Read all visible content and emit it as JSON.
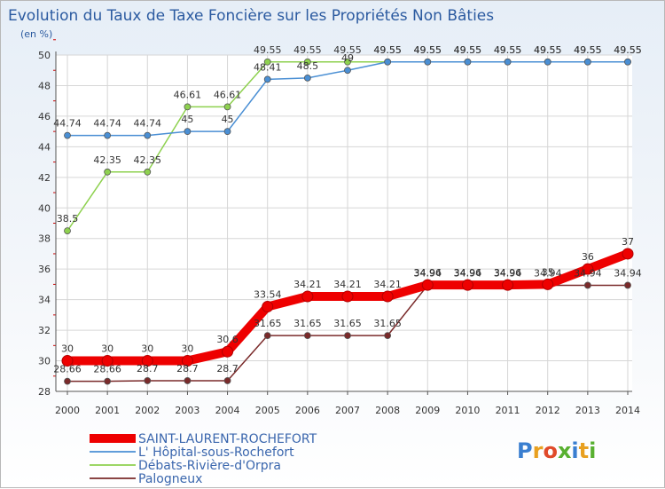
{
  "chart_data": {
    "type": "line",
    "title": "Evolution du Taux de Taxe Foncière sur les Propriétés Non Bâties",
    "unit_label": "(en %)",
    "ylim": [
      28,
      50
    ],
    "yticks": [
      28,
      30,
      32,
      34,
      36,
      38,
      40,
      42,
      44,
      46,
      48,
      50
    ],
    "x": [
      "2000",
      "2001",
      "2002",
      "2003",
      "2004",
      "2005",
      "2006",
      "2007",
      "2008",
      "2009",
      "2010",
      "2011",
      "2012",
      "2013",
      "2014"
    ],
    "series": [
      {
        "name": "Débats-Rivière-d'Orpra",
        "key": "debats-riviere",
        "color": "#8ed14f",
        "values": [
          38.5,
          42.35,
          42.35,
          46.61,
          46.61,
          49.55,
          49.55,
          49.55,
          49.55,
          49.55,
          49.55,
          49.55,
          49.55,
          49.55,
          49.55
        ],
        "labels": [
          "38.5",
          "42.35",
          "42.35",
          "46.61",
          "46.61",
          "49.55",
          "49.55",
          "49.55",
          "49.55",
          "49.55",
          "49.55",
          "49.55",
          "49.55",
          "49.55",
          "49.55"
        ]
      },
      {
        "name": "L' Hôpital-sous-Rochefort",
        "key": "hopital-sous-rochefort",
        "color": "#4a8fd4",
        "values": [
          44.74,
          44.74,
          44.74,
          45,
          45,
          48.41,
          48.5,
          49,
          49.55,
          49.55,
          49.55,
          49.55,
          49.55,
          49.55,
          49.55
        ],
        "labels": [
          "44.74",
          "44.74",
          "44.74",
          "45",
          "45",
          "48.41",
          "48.5",
          "49",
          "49.55",
          "49.55",
          "49.55",
          "49.55",
          "49.55",
          "49.55",
          "49.55"
        ]
      },
      {
        "name": "Palogneux",
        "key": "palogneux",
        "color": "#7a2a2a",
        "values": [
          28.66,
          28.66,
          28.7,
          28.7,
          28.7,
          31.65,
          31.65,
          31.65,
          31.65,
          34.94,
          34.94,
          34.94,
          34.94,
          34.94,
          34.94
        ],
        "labels": [
          "28.66",
          "28.66",
          "28.7",
          "28.7",
          "28.7",
          "31.65",
          "31.65",
          "31.65",
          "31.65",
          "34.94",
          "34.94",
          "34.94",
          "34.94",
          "34.94",
          "34.94"
        ]
      },
      {
        "name": "SAINT-LAURENT-ROCHEFORT",
        "key": "saint-laurent-rochefort",
        "color": "#ee0000",
        "thick": true,
        "values": [
          30,
          30,
          30,
          30,
          30.6,
          33.54,
          34.21,
          34.21,
          34.21,
          34.96,
          34.96,
          34.96,
          35,
          36,
          37
        ],
        "labels": [
          "30",
          "30",
          "30",
          "30",
          "30.6",
          "33.54",
          "34.21",
          "34.21",
          "34.21",
          "34.96",
          "34.96",
          "34.96",
          "35",
          "36",
          "37"
        ]
      }
    ],
    "legend_order": [
      "saint-laurent-rochefort",
      "hopital-sous-rochefort",
      "debats-riviere",
      "palogneux"
    ]
  },
  "brand": {
    "text": "Proxiti",
    "letter_colors": [
      "#3a7fd0",
      "#e8a020",
      "#e04a2a",
      "#58b030",
      "#3a7fd0",
      "#e8a020",
      "#58b030"
    ]
  }
}
